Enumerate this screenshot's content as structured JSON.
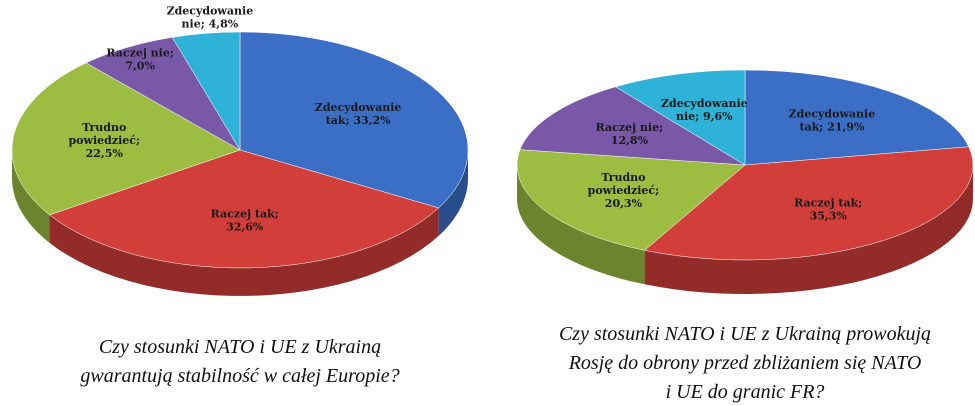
{
  "chart_data": [
    {
      "type": "pie",
      "title": "Czy stosunki NATO i UE z Ukrainą gwarantują stabilność w całej Europie?",
      "values": [
        33.2,
        32.6,
        22.5,
        7.0,
        4.8
      ],
      "value_labels": [
        "Zdecydowanie tak; 33,2%",
        "Raczej tak; 32,6%",
        "Trudno powiedzieć; 22,5%",
        "Raczej nie; 7,0%",
        "Zdecydowanie nie; 4,8%"
      ],
      "colors": [
        "#3b6fc6",
        "#d23f3a",
        "#9cbc42",
        "#7a58a8",
        "#2fb2d8"
      ]
    },
    {
      "type": "pie",
      "title": "Czy stosunki NATO i UE z Ukrainą prowokują Rosję do obrony przed zbliżaniem się NATO i UE do granic FR?",
      "values": [
        21.9,
        35.3,
        20.3,
        12.8,
        9.6
      ],
      "value_labels": [
        "Zdecydowanie tak; 21,9%",
        "Raczej tak; 35,3%",
        "Trudno powiedzieć; 20,3%",
        "Raczej nie; 12,8%",
        "Zdecydowanie nie; 9,6%"
      ],
      "colors": [
        "#3b6fc6",
        "#d23f3a",
        "#9cbc42",
        "#7a58a8",
        "#2fb2d8"
      ]
    }
  ]
}
